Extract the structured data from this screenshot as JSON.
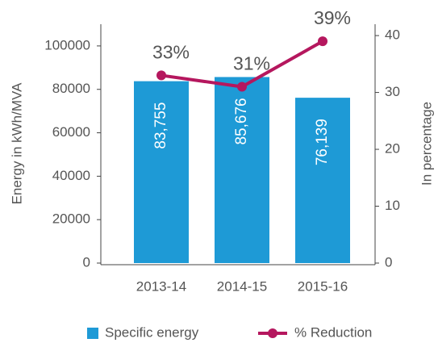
{
  "chart_data": {
    "type": "combo",
    "categories": [
      "2013-14",
      "2014-15",
      "2015-16"
    ],
    "y_label": "Energy in kWh/MVA",
    "y2_label": "In percentage",
    "ylim": [
      0,
      110000
    ],
    "yticks": [
      0,
      20000,
      40000,
      60000,
      80000,
      100000
    ],
    "y2lim": [
      0,
      42
    ],
    "y2ticks": [
      0,
      10,
      20,
      30,
      40
    ],
    "legend": "bottom",
    "series": [
      {
        "name": "Specific energy",
        "type": "bar",
        "color": "#1e9ad6",
        "values": [
          83755,
          85676,
          76139
        ],
        "value_labels": [
          "83,755",
          "85,676",
          "76,139"
        ]
      },
      {
        "name": "% Reduction",
        "type": "line",
        "axis": "y2",
        "color": "#b5175e",
        "values": [
          33,
          31,
          39
        ],
        "value_labels": [
          "33%",
          "31%",
          "39%"
        ]
      }
    ]
  }
}
